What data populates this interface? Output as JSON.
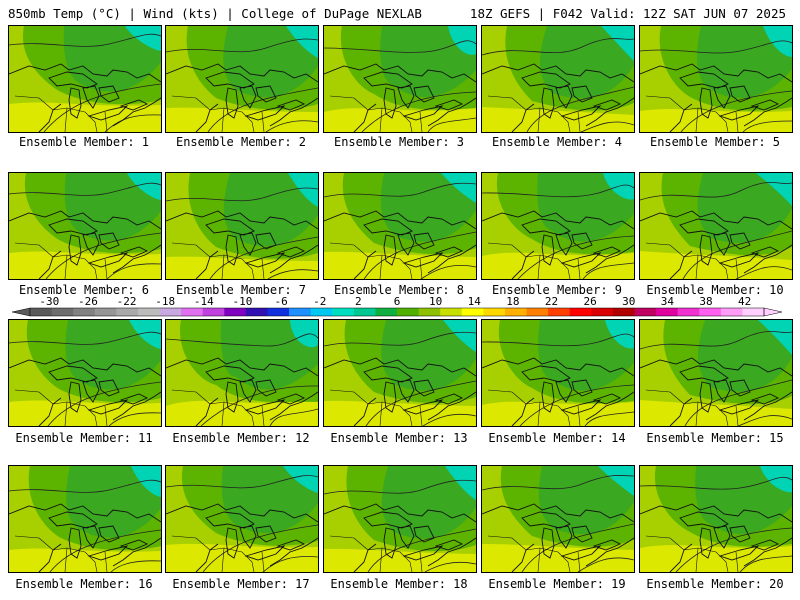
{
  "header": {
    "left": "850mb Temp (°C) | Wind (kts) | College of DuPage NEXLAB",
    "right": "18Z GEFS | F042 Valid: 12Z SAT JUN 07 2025"
  },
  "panels": [
    {
      "label": "Ensemble Member: 1"
    },
    {
      "label": "Ensemble Member: 2"
    },
    {
      "label": "Ensemble Member: 3"
    },
    {
      "label": "Ensemble Member: 4"
    },
    {
      "label": "Ensemble Member: 5"
    },
    {
      "label": "Ensemble Member: 6"
    },
    {
      "label": "Ensemble Member: 7"
    },
    {
      "label": "Ensemble Member: 8"
    },
    {
      "label": "Ensemble Member: 9"
    },
    {
      "label": "Ensemble Member: 10"
    },
    {
      "label": "Ensemble Member: 11"
    },
    {
      "label": "Ensemble Member: 12"
    },
    {
      "label": "Ensemble Member: 13"
    },
    {
      "label": "Ensemble Member: 14"
    },
    {
      "label": "Ensemble Member: 15"
    },
    {
      "label": "Ensemble Member: 16"
    },
    {
      "label": "Ensemble Member: 17"
    },
    {
      "label": "Ensemble Member: 18"
    },
    {
      "label": "Ensemble Member: 19"
    },
    {
      "label": "Ensemble Member: 20"
    }
  ],
  "colorbar": {
    "labels": [
      "-30",
      "-26",
      "-22",
      "-18",
      "-14",
      "-10",
      "-6",
      "-2",
      "2",
      "6",
      "10",
      "14",
      "18",
      "22",
      "26",
      "30",
      "34",
      "38",
      "42"
    ],
    "colors": [
      "#5a5a5a",
      "#6e6e6e",
      "#828282",
      "#969696",
      "#aaaaaa",
      "#bcbcbc",
      "#c8a8e0",
      "#e070f0",
      "#c040e0",
      "#8000c0",
      "#3010b0",
      "#1030e0",
      "#1e90ff",
      "#00c8f0",
      "#00e0c0",
      "#00c890",
      "#10b040",
      "#50b000",
      "#8cc000",
      "#c8e000",
      "#ffff00",
      "#ffd800",
      "#ffb000",
      "#ff8000",
      "#ff4000",
      "#ff0000",
      "#d80000",
      "#b00000",
      "#c00060",
      "#e000a0",
      "#f030d0",
      "#ff60f0",
      "#ff9cf8",
      "#ffd0ff"
    ]
  },
  "colors": {
    "teal": "#00d4b4",
    "green_dark": "#3aa820",
    "green": "#5cb400",
    "yellow_green": "#a8d000",
    "yellow": "#dce800"
  }
}
